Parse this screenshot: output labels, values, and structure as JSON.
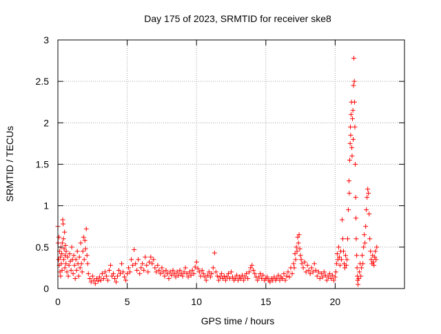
{
  "chart_data": {
    "type": "scatter",
    "title": "Day 175 of 2023, SRMTID for receiver ske8",
    "xlabel": "GPS time / hours",
    "ylabel": "SRMTID / TECUs",
    "xlim": [
      0,
      25
    ],
    "ylim": [
      0,
      3
    ],
    "x_ticks": [
      0,
      5,
      10,
      15,
      20
    ],
    "x_tick_labels": [
      "0",
      "5",
      "10",
      "15",
      "20"
    ],
    "y_ticks": [
      0,
      0.5,
      1,
      1.5,
      2,
      2.5,
      3
    ],
    "y_tick_labels": [
      "0",
      "0.5",
      "1",
      "1.5",
      "2",
      "2.5",
      "3"
    ],
    "grid": true,
    "marker": "+",
    "color": "#ff0000",
    "series": [
      {
        "name": "SRMTID",
        "points": [
          [
            0.0,
            0.75
          ],
          [
            0.02,
            0.55
          ],
          [
            0.05,
            0.35
          ],
          [
            0.08,
            0.62
          ],
          [
            0.1,
            0.28
          ],
          [
            0.12,
            0.45
          ],
          [
            0.15,
            0.2
          ],
          [
            0.18,
            0.38
          ],
          [
            0.2,
            0.15
          ],
          [
            0.22,
            0.5
          ],
          [
            0.25,
            0.3
          ],
          [
            0.28,
            0.42
          ],
          [
            0.3,
            0.22
          ],
          [
            0.32,
            0.55
          ],
          [
            0.35,
            0.83
          ],
          [
            0.38,
            0.78
          ],
          [
            0.4,
            0.6
          ],
          [
            0.42,
            0.35
          ],
          [
            0.45,
            0.48
          ],
          [
            0.48,
            0.68
          ],
          [
            0.5,
            0.25
          ],
          [
            0.52,
            0.4
          ],
          [
            0.55,
            0.52
          ],
          [
            0.58,
            0.3
          ],
          [
            0.6,
            0.45
          ],
          [
            0.65,
            0.2
          ],
          [
            0.7,
            0.38
          ],
          [
            0.75,
            0.15
          ],
          [
            0.8,
            0.28
          ],
          [
            0.85,
            0.42
          ],
          [
            0.9,
            0.33
          ],
          [
            0.95,
            0.22
          ],
          [
            1.0,
            0.5
          ],
          [
            1.05,
            0.35
          ],
          [
            1.1,
            0.18
          ],
          [
            1.15,
            0.4
          ],
          [
            1.2,
            0.28
          ],
          [
            1.25,
            0.12
          ],
          [
            1.3,
            0.35
          ],
          [
            1.35,
            0.22
          ],
          [
            1.4,
            0.45
          ],
          [
            1.45,
            0.3
          ],
          [
            1.5,
            0.15
          ],
          [
            1.55,
            0.38
          ],
          [
            1.6,
            0.25
          ],
          [
            1.65,
            0.55
          ],
          [
            1.7,
            0.3
          ],
          [
            1.75,
            0.2
          ],
          [
            1.8,
            0.45
          ],
          [
            1.85,
            0.62
          ],
          [
            1.9,
            0.35
          ],
          [
            1.95,
            0.58
          ],
          [
            2.0,
            0.48
          ],
          [
            2.05,
            0.72
          ],
          [
            2.1,
            0.4
          ],
          [
            2.15,
            0.3
          ],
          [
            2.2,
            0.18
          ],
          [
            2.3,
            0.12
          ],
          [
            2.4,
            0.08
          ],
          [
            2.5,
            0.15
          ],
          [
            2.6,
            0.1
          ],
          [
            2.7,
            0.06
          ],
          [
            2.8,
            0.12
          ],
          [
            2.9,
            0.09
          ],
          [
            3.0,
            0.14
          ],
          [
            3.1,
            0.1
          ],
          [
            3.2,
            0.18
          ],
          [
            3.3,
            0.12
          ],
          [
            3.4,
            0.2
          ],
          [
            3.5,
            0.15
          ],
          [
            3.6,
            0.1
          ],
          [
            3.7,
            0.22
          ],
          [
            3.8,
            0.28
          ],
          [
            3.9,
            0.15
          ],
          [
            4.0,
            0.18
          ],
          [
            4.1,
            0.12
          ],
          [
            4.2,
            0.08
          ],
          [
            4.3,
            0.15
          ],
          [
            4.4,
            0.22
          ],
          [
            4.5,
            0.18
          ],
          [
            4.6,
            0.3
          ],
          [
            4.7,
            0.2
          ],
          [
            4.8,
            0.14
          ],
          [
            4.9,
            0.1
          ],
          [
            5.0,
            0.18
          ],
          [
            5.1,
            0.25
          ],
          [
            5.2,
            0.2
          ],
          [
            5.3,
            0.35
          ],
          [
            5.4,
            0.28
          ],
          [
            5.5,
            0.47
          ],
          [
            5.6,
            0.3
          ],
          [
            5.7,
            0.22
          ],
          [
            5.8,
            0.35
          ],
          [
            5.9,
            0.18
          ],
          [
            6.0,
            0.25
          ],
          [
            6.1,
            0.3
          ],
          [
            6.2,
            0.22
          ],
          [
            6.3,
            0.38
          ],
          [
            6.4,
            0.28
          ],
          [
            6.5,
            0.2
          ],
          [
            6.6,
            0.32
          ],
          [
            6.7,
            0.38
          ],
          [
            6.8,
            0.3
          ],
          [
            6.9,
            0.35
          ],
          [
            7.0,
            0.25
          ],
          [
            7.1,
            0.2
          ],
          [
            7.2,
            0.28
          ],
          [
            7.3,
            0.22
          ],
          [
            7.4,
            0.18
          ],
          [
            7.5,
            0.25
          ],
          [
            7.6,
            0.2
          ],
          [
            7.7,
            0.15
          ],
          [
            7.8,
            0.22
          ],
          [
            7.9,
            0.18
          ],
          [
            8.0,
            0.12
          ],
          [
            8.1,
            0.2
          ],
          [
            8.2,
            0.16
          ],
          [
            8.3,
            0.22
          ],
          [
            8.4,
            0.18
          ],
          [
            8.5,
            0.14
          ],
          [
            8.6,
            0.2
          ],
          [
            8.7,
            0.16
          ],
          [
            8.8,
            0.22
          ],
          [
            8.9,
            0.18
          ],
          [
            9.0,
            0.15
          ],
          [
            9.1,
            0.2
          ],
          [
            9.2,
            0.25
          ],
          [
            9.3,
            0.18
          ],
          [
            9.4,
            0.14
          ],
          [
            9.5,
            0.2
          ],
          [
            9.6,
            0.16
          ],
          [
            9.7,
            0.22
          ],
          [
            9.8,
            0.18
          ],
          [
            9.9,
            0.26
          ],
          [
            10.0,
            0.32
          ],
          [
            10.1,
            0.24
          ],
          [
            10.2,
            0.2
          ],
          [
            10.3,
            0.15
          ],
          [
            10.4,
            0.22
          ],
          [
            10.5,
            0.18
          ],
          [
            10.6,
            0.14
          ],
          [
            10.7,
            0.1
          ],
          [
            10.8,
            0.16
          ],
          [
            10.9,
            0.2
          ],
          [
            11.0,
            0.14
          ],
          [
            11.1,
            0.18
          ],
          [
            11.2,
            0.25
          ],
          [
            11.3,
            0.43
          ],
          [
            11.4,
            0.2
          ],
          [
            11.5,
            0.15
          ],
          [
            11.6,
            0.1
          ],
          [
            11.7,
            0.14
          ],
          [
            11.8,
            0.18
          ],
          [
            11.9,
            0.12
          ],
          [
            12.0,
            0.15
          ],
          [
            12.1,
            0.1
          ],
          [
            12.2,
            0.14
          ],
          [
            12.3,
            0.18
          ],
          [
            12.4,
            0.12
          ],
          [
            12.5,
            0.2
          ],
          [
            12.6,
            0.14
          ],
          [
            12.7,
            0.1
          ],
          [
            12.8,
            0.12
          ],
          [
            12.9,
            0.16
          ],
          [
            13.0,
            0.1
          ],
          [
            13.1,
            0.14
          ],
          [
            13.2,
            0.12
          ],
          [
            13.3,
            0.16
          ],
          [
            13.4,
            0.1
          ],
          [
            13.5,
            0.14
          ],
          [
            13.6,
            0.18
          ],
          [
            13.7,
            0.12
          ],
          [
            13.8,
            0.2
          ],
          [
            13.9,
            0.25
          ],
          [
            14.0,
            0.28
          ],
          [
            14.1,
            0.22
          ],
          [
            14.2,
            0.18
          ],
          [
            14.3,
            0.14
          ],
          [
            14.4,
            0.1
          ],
          [
            14.5,
            0.14
          ],
          [
            14.6,
            0.18
          ],
          [
            14.7,
            0.12
          ],
          [
            14.8,
            0.16
          ],
          [
            14.9,
            0.1
          ],
          [
            15.0,
            0.12
          ],
          [
            15.1,
            0.14
          ],
          [
            15.2,
            0.1
          ],
          [
            15.3,
            0.08
          ],
          [
            15.4,
            0.12
          ],
          [
            15.5,
            0.1
          ],
          [
            15.6,
            0.14
          ],
          [
            15.7,
            0.1
          ],
          [
            15.8,
            0.12
          ],
          [
            15.9,
            0.16
          ],
          [
            16.0,
            0.1
          ],
          [
            16.1,
            0.14
          ],
          [
            16.2,
            0.12
          ],
          [
            16.3,
            0.18
          ],
          [
            16.4,
            0.1
          ],
          [
            16.5,
            0.15
          ],
          [
            16.6,
            0.2
          ],
          [
            16.7,
            0.14
          ],
          [
            16.8,
            0.25
          ],
          [
            16.9,
            0.18
          ],
          [
            17.0,
            0.3
          ],
          [
            17.05,
            0.25
          ],
          [
            17.1,
            0.42
          ],
          [
            17.15,
            0.35
          ],
          [
            17.2,
            0.5
          ],
          [
            17.25,
            0.45
          ],
          [
            17.3,
            0.62
          ],
          [
            17.35,
            0.55
          ],
          [
            17.4,
            0.65
          ],
          [
            17.45,
            0.48
          ],
          [
            17.5,
            0.4
          ],
          [
            17.55,
            0.35
          ],
          [
            17.6,
            0.3
          ],
          [
            17.7,
            0.25
          ],
          [
            17.8,
            0.32
          ],
          [
            17.9,
            0.2
          ],
          [
            18.0,
            0.28
          ],
          [
            18.1,
            0.22
          ],
          [
            18.2,
            0.18
          ],
          [
            18.3,
            0.25
          ],
          [
            18.4,
            0.2
          ],
          [
            18.5,
            0.3
          ],
          [
            18.6,
            0.22
          ],
          [
            18.7,
            0.15
          ],
          [
            18.8,
            0.2
          ],
          [
            18.9,
            0.12
          ],
          [
            19.0,
            0.18
          ],
          [
            19.1,
            0.14
          ],
          [
            19.2,
            0.2
          ],
          [
            19.3,
            0.16
          ],
          [
            19.4,
            0.1
          ],
          [
            19.5,
            0.14
          ],
          [
            19.6,
            0.18
          ],
          [
            19.7,
            0.12
          ],
          [
            19.8,
            0.16
          ],
          [
            19.9,
            0.1
          ],
          [
            20.0,
            0.14
          ],
          [
            20.05,
            0.2
          ],
          [
            20.1,
            0.3
          ],
          [
            20.15,
            0.42
          ],
          [
            20.2,
            0.35
          ],
          [
            20.25,
            0.5
          ],
          [
            20.3,
            0.38
          ],
          [
            20.35,
            0.28
          ],
          [
            20.4,
            0.45
          ],
          [
            20.45,
            0.35
          ],
          [
            20.5,
            0.83
          ],
          [
            20.55,
            0.6
          ],
          [
            20.6,
            0.45
          ],
          [
            20.65,
            0.3
          ],
          [
            20.7,
            0.25
          ],
          [
            20.75,
            0.4
          ],
          [
            20.8,
            0.28
          ],
          [
            20.85,
            0.35
          ],
          [
            20.9,
            0.6
          ],
          [
            20.95,
            0.95
          ],
          [
            21.0,
            1.3
          ],
          [
            21.02,
            1.15
          ],
          [
            21.05,
            1.55
          ],
          [
            21.08,
            1.75
          ],
          [
            21.1,
            1.95
          ],
          [
            21.12,
            1.85
          ],
          [
            21.15,
            2.1
          ],
          [
            21.18,
            2.25
          ],
          [
            21.2,
            1.7
          ],
          [
            21.22,
            1.6
          ],
          [
            21.25,
            2.05
          ],
          [
            21.28,
            2.15
          ],
          [
            21.3,
            1.8
          ],
          [
            21.32,
            2.45
          ],
          [
            21.35,
            2.78
          ],
          [
            21.38,
            2.5
          ],
          [
            21.4,
            2.25
          ],
          [
            21.42,
            1.95
          ],
          [
            21.45,
            1.5
          ],
          [
            21.48,
            1.1
          ],
          [
            21.5,
            0.85
          ],
          [
            21.52,
            0.6
          ],
          [
            21.55,
            0.4
          ],
          [
            21.58,
            0.25
          ],
          [
            21.6,
            0.15
          ],
          [
            21.62,
            0.1
          ],
          [
            21.65,
            0.05
          ],
          [
            21.7,
            0.12
          ],
          [
            21.75,
            0.2
          ],
          [
            21.8,
            0.3
          ],
          [
            21.85,
            0.15
          ],
          [
            21.9,
            0.25
          ],
          [
            21.95,
            0.4
          ],
          [
            22.0,
            0.3
          ],
          [
            22.05,
            0.5
          ],
          [
            22.1,
            0.65
          ],
          [
            22.15,
            0.55
          ],
          [
            22.2,
            0.75
          ],
          [
            22.25,
            0.95
          ],
          [
            22.3,
            1.1
          ],
          [
            22.35,
            1.2
          ],
          [
            22.4,
            1.15
          ],
          [
            22.45,
            0.9
          ],
          [
            22.5,
            0.6
          ],
          [
            22.55,
            0.45
          ],
          [
            22.6,
            0.35
          ],
          [
            22.65,
            0.3
          ],
          [
            22.7,
            0.4
          ],
          [
            22.75,
            0.32
          ],
          [
            22.8,
            0.28
          ],
          [
            22.85,
            0.38
          ],
          [
            22.9,
            0.45
          ],
          [
            22.95,
            0.35
          ],
          [
            23.0,
            0.5
          ]
        ]
      }
    ]
  }
}
